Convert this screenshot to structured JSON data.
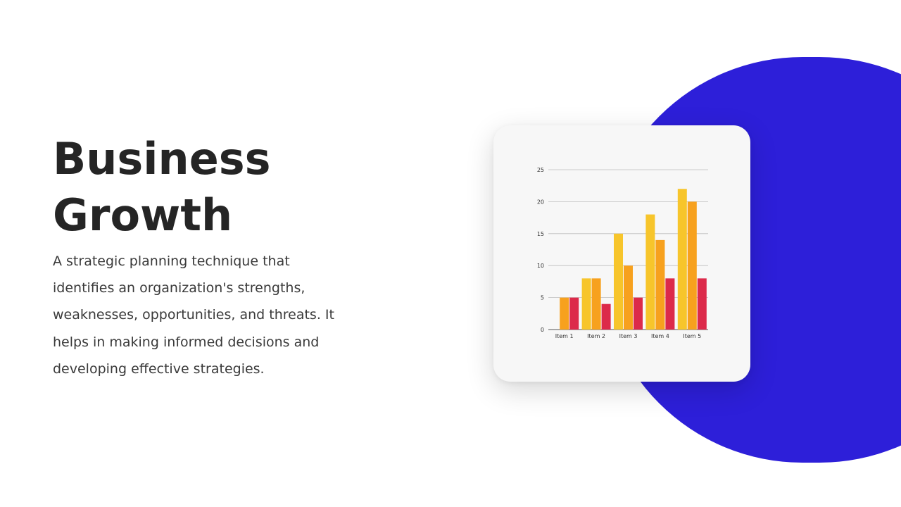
{
  "slide": {
    "title_line1": "Business",
    "title_line2": "Growth",
    "body_lines": [
      "A strategic planning technique that",
      "identifies an organization's  strengths,",
      "weaknesses, opportunities, and threats. It",
      "helps in making informed decisions and",
      "developing  effective strategies."
    ]
  },
  "colors": {
    "accent_blob": "#2d1fd9",
    "title_text": "#252525",
    "body_text": "#3a3a3a",
    "card_bg": "#f7f7f7"
  },
  "chart_data": {
    "type": "bar",
    "categories": [
      "Item 1",
      "Item 2",
      "Item 3",
      "Item 4",
      "Item 5"
    ],
    "series": [
      {
        "values": [
          0,
          8,
          15,
          18,
          22
        ],
        "color": "#f7c52b"
      },
      {
        "values": [
          5,
          8,
          10,
          14,
          20
        ],
        "color": "#f7a11e"
      },
      {
        "values": [
          5,
          4,
          5,
          8,
          8
        ],
        "color": "#dc2a4a"
      }
    ],
    "ylim": [
      0,
      25
    ],
    "yticks": [
      0,
      5,
      10,
      15,
      20,
      25
    ],
    "grid": true,
    "legend": "none",
    "title": "",
    "xlabel": "",
    "ylabel": ""
  }
}
